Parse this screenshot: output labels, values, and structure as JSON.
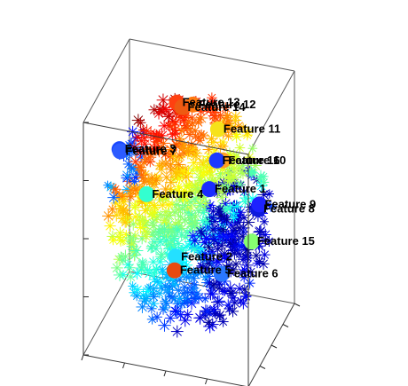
{
  "chart_data": {
    "type": "scatter",
    "projection": "3d-box",
    "grid": false,
    "colormap": "jet",
    "markers": "asterisk-cloud",
    "features": [
      {
        "label": "Feature 1",
        "x": 0.15,
        "y": 0.35,
        "z": 0.1,
        "color": "#1a2cff"
      },
      {
        "label": "Feature 2",
        "x": 0.05,
        "y": -0.75,
        "z": -0.1,
        "color": "#24e0ff"
      },
      {
        "label": "Feature 3",
        "x": -0.78,
        "y": -0.22,
        "z": 0.52,
        "color": "#1746ff"
      },
      {
        "label": "Feature 4",
        "x": -0.4,
        "y": -0.4,
        "z": 0.25,
        "color": "#33ffd0"
      },
      {
        "label": "Feature 5",
        "x": 0.05,
        "y": -0.8,
        "z": -0.2,
        "color": "#e84a10"
      },
      {
        "label": "Feature 6",
        "x": 0.55,
        "y": -0.55,
        "z": -0.25,
        "color": "#2a78ff"
      },
      {
        "label": "Feature 7",
        "x": -0.76,
        "y": -0.26,
        "z": 0.52,
        "color": "#2c5bff"
      },
      {
        "label": "Feature 8",
        "x": 0.7,
        "y": 0.5,
        "z": -0.05,
        "color": "#0e1adc"
      },
      {
        "label": "Feature 9",
        "x": 0.72,
        "y": 0.48,
        "z": 0.0,
        "color": "#1d22ff"
      },
      {
        "label": "Feature 10",
        "x": 0.3,
        "y": 0.4,
        "z": 0.35,
        "color": "#ffa020"
      },
      {
        "label": "Feature 11",
        "x": 0.2,
        "y": 0.55,
        "z": 0.55,
        "color": "#f6e21a"
      },
      {
        "label": "Feature 12",
        "x": -0.05,
        "y": 0.35,
        "z": 0.8,
        "color": "#ff7a10"
      },
      {
        "label": "Feature 13",
        "x": -0.2,
        "y": 0.2,
        "z": 0.85,
        "color": "#ff4010"
      },
      {
        "label": "Feature 14",
        "x": -0.15,
        "y": 0.25,
        "z": 0.8,
        "color": "#ee5a12"
      },
      {
        "label": "Feature 15",
        "x": 0.65,
        "y": 0.4,
        "z": -0.3,
        "color": "#86ff70"
      },
      {
        "label": "Feature 16",
        "x": 0.2,
        "y": 0.5,
        "z": 0.3,
        "color": "#1b3aff"
      }
    ]
  }
}
